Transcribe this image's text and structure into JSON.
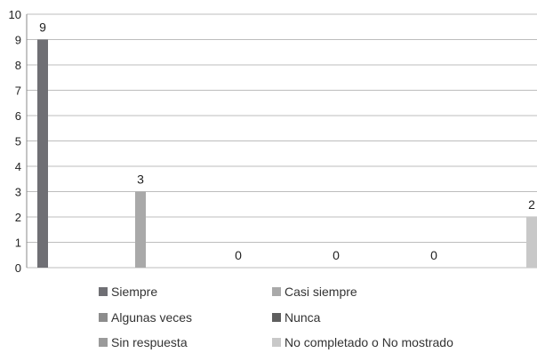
{
  "chart_data": {
    "type": "bar",
    "categories": [
      ""
    ],
    "series": [
      {
        "name": "Siempre",
        "values": [
          9
        ],
        "color": "#6f6f74"
      },
      {
        "name": "Casi siempre",
        "values": [
          3
        ],
        "color": "#a9a9a9"
      },
      {
        "name": "Algunas veces",
        "values": [
          0
        ],
        "color": "#8c8c8c"
      },
      {
        "name": "Nunca",
        "values": [
          0
        ],
        "color": "#5f5f5f"
      },
      {
        "name": "Sin respuesta",
        "values": [
          0
        ],
        "color": "#9a9a9a"
      },
      {
        "name": "No completado o No mostrado",
        "values": [
          2
        ],
        "color": "#c8c8c8"
      }
    ],
    "title": "",
    "xlabel": "",
    "ylabel": "",
    "ylim": [
      0,
      10
    ],
    "yticks": [
      "0",
      "1",
      "2",
      "3",
      "4",
      "5",
      "6",
      "7",
      "8",
      "9",
      "10"
    ],
    "data_labels": [
      "9",
      "3",
      "0",
      "0",
      "0",
      "2"
    ],
    "grid": true,
    "legend_position": "bottom"
  }
}
